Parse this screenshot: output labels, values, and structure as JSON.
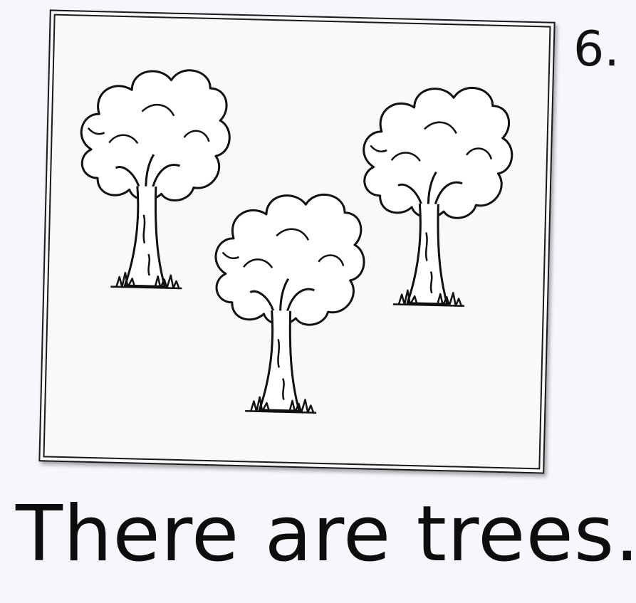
{
  "worksheet": {
    "item_number": "6.",
    "sentence": "There are trees.",
    "illustration": {
      "subject": "trees",
      "count": 3,
      "icon": "tree-icon"
    }
  }
}
